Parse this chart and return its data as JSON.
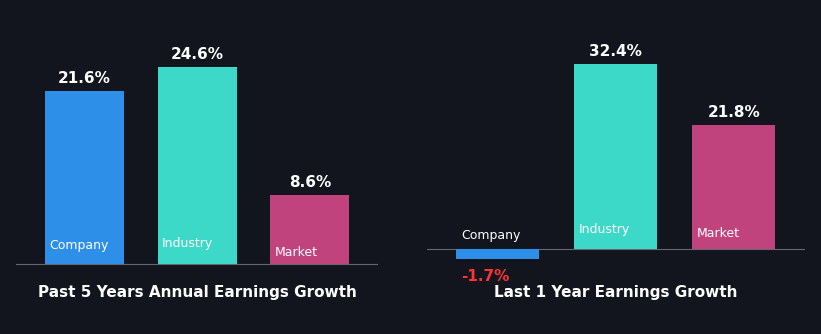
{
  "background_color": "#13151e",
  "chart1": {
    "title": "Past 5 Years Annual Earnings Growth",
    "bars": [
      {
        "label": "Company",
        "value": 21.6,
        "color": "#2e8fe8"
      },
      {
        "label": "Industry",
        "value": 24.6,
        "color": "#3dd9c8"
      },
      {
        "label": "Market",
        "value": 8.6,
        "color": "#c0437e"
      }
    ]
  },
  "chart2": {
    "title": "Last 1 Year Earnings Growth",
    "bars": [
      {
        "label": "Company",
        "value": -1.7,
        "color": "#2e8fe8"
      },
      {
        "label": "Industry",
        "value": 32.4,
        "color": "#3dd9c8"
      },
      {
        "label": "Market",
        "value": 21.8,
        "color": "#c0437e"
      }
    ]
  },
  "text_color": "#ffffff",
  "title_color": "#ffffff",
  "negative_value_color": "#ff3333",
  "label_fontsize": 9,
  "value_fontsize": 11,
  "title_fontsize": 11
}
